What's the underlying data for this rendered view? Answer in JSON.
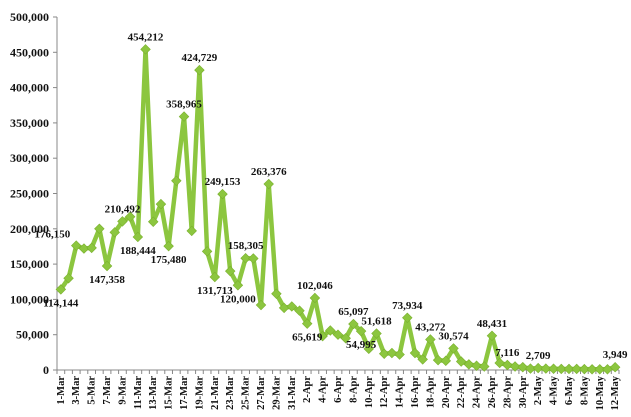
{
  "chart_data": {
    "type": "line",
    "title": "",
    "xlabel": "",
    "ylabel": "",
    "ylim": [
      0,
      500000
    ],
    "y_ticks": [
      "0",
      "50,000",
      "100,000",
      "150,000",
      "200,000",
      "250,000",
      "300,000",
      "350,000",
      "400,000",
      "450,000",
      "500,000"
    ],
    "x": [
      "1-Mar",
      "2-Mar",
      "3-Mar",
      "4-Mar",
      "5-Mar",
      "6-Mar",
      "7-Mar",
      "8-Mar",
      "9-Mar",
      "10-Mar",
      "11-Mar",
      "12-Mar",
      "13-Mar",
      "14-Mar",
      "15-Mar",
      "16-Mar",
      "17-Mar",
      "18-Mar",
      "19-Mar",
      "20-Mar",
      "21-Mar",
      "22-Mar",
      "23-Mar",
      "24-Mar",
      "25-Mar",
      "26-Mar",
      "27-Mar",
      "28-Mar",
      "29-Mar",
      "30-Mar",
      "31-Mar",
      "1-Apr",
      "2-Apr",
      "3-Apr",
      "4-Apr",
      "5-Apr",
      "6-Apr",
      "7-Apr",
      "8-Apr",
      "9-Apr",
      "10-Apr",
      "11-Apr",
      "12-Apr",
      "13-Apr",
      "14-Apr",
      "15-Apr",
      "16-Apr",
      "17-Apr",
      "18-Apr",
      "19-Apr",
      "20-Apr",
      "21-Apr",
      "22-Apr",
      "23-Apr",
      "24-Apr",
      "25-Apr",
      "26-Apr",
      "27-Apr",
      "28-Apr",
      "29-Apr",
      "30-Apr",
      "1-May",
      "2-May",
      "3-May",
      "4-May",
      "5-May",
      "6-May",
      "7-May",
      "8-May",
      "9-May",
      "10-May",
      "11-May",
      "12-May"
    ],
    "x_tick_labels": [
      "1-Mar",
      "3-Mar",
      "5-Mar",
      "7-Mar",
      "9-Mar",
      "11-Mar",
      "13-Mar",
      "15-Mar",
      "17-Mar",
      "19-Mar",
      "21-Mar",
      "23-Mar",
      "25-Mar",
      "27-Mar",
      "29-Mar",
      "31-Mar",
      "2-Apr",
      "4-Apr",
      "6-Apr",
      "8-Apr",
      "10-Apr",
      "12-Apr",
      "14-Apr",
      "16-Apr",
      "18-Apr",
      "20-Apr",
      "22-Apr",
      "24-Apr",
      "26-Apr",
      "28-Apr",
      "30-Apr",
      "2-May",
      "4-May",
      "6-May",
      "8-May",
      "10-May",
      "12-May"
    ],
    "values": [
      114144,
      130000,
      176150,
      172000,
      173000,
      200000,
      147358,
      195000,
      210492,
      217000,
      188444,
      454212,
      210000,
      235000,
      175480,
      268000,
      358965,
      197000,
      424729,
      168000,
      131713,
      249153,
      140000,
      120000,
      158305,
      158000,
      92000,
      263376,
      108000,
      88000,
      90000,
      84000,
      65619,
      102046,
      48000,
      56000,
      50000,
      45000,
      65097,
      54995,
      30000,
      51618,
      23000,
      24000,
      22000,
      73934,
      24000,
      15000,
      43272,
      14000,
      13000,
      30574,
      12000,
      8000,
      6000,
      5000,
      48431,
      10000,
      7116,
      5000,
      4000,
      2000,
      2709,
      2000,
      1800,
      1500,
      1500,
      1500,
      1200,
      1000,
      1000,
      1000,
      3949
    ],
    "data_labels": [
      {
        "index": 0,
        "text": "114,144",
        "pos": "below"
      },
      {
        "index": 2,
        "text": "176,150",
        "pos": "left"
      },
      {
        "index": 6,
        "text": "147,358",
        "pos": "below"
      },
      {
        "index": 8,
        "text": "210,492",
        "pos": "above"
      },
      {
        "index": 10,
        "text": "188,444",
        "pos": "below"
      },
      {
        "index": 11,
        "text": "454,212",
        "pos": "above"
      },
      {
        "index": 14,
        "text": "175,480",
        "pos": "below"
      },
      {
        "index": 16,
        "text": "358,965",
        "pos": "above"
      },
      {
        "index": 18,
        "text": "424,729",
        "pos": "above"
      },
      {
        "index": 20,
        "text": "131,713",
        "pos": "below"
      },
      {
        "index": 21,
        "text": "249,153",
        "pos": "above"
      },
      {
        "index": 23,
        "text": "120,000",
        "pos": "below"
      },
      {
        "index": 24,
        "text": "158,305",
        "pos": "above"
      },
      {
        "index": 27,
        "text": "263,376",
        "pos": "above"
      },
      {
        "index": 32,
        "text": "65,619",
        "pos": "below"
      },
      {
        "index": 33,
        "text": "102,046",
        "pos": "above"
      },
      {
        "index": 38,
        "text": "65,097",
        "pos": "above"
      },
      {
        "index": 39,
        "text": "54,995",
        "pos": "below"
      },
      {
        "index": 41,
        "text": "51,618",
        "pos": "above"
      },
      {
        "index": 45,
        "text": "73,934",
        "pos": "above"
      },
      {
        "index": 48,
        "text": "43,272",
        "pos": "above"
      },
      {
        "index": 51,
        "text": "30,574",
        "pos": "above"
      },
      {
        "index": 56,
        "text": "48,431",
        "pos": "above"
      },
      {
        "index": 58,
        "text": "7,116",
        "pos": "above"
      },
      {
        "index": 62,
        "text": "2,709",
        "pos": "above"
      },
      {
        "index": 72,
        "text": "3,949",
        "pos": "above"
      }
    ],
    "grid": false,
    "legend": "none",
    "colors": {
      "line": "#8cc63f",
      "marker": "#8cc63f",
      "axis": "#888888"
    }
  }
}
